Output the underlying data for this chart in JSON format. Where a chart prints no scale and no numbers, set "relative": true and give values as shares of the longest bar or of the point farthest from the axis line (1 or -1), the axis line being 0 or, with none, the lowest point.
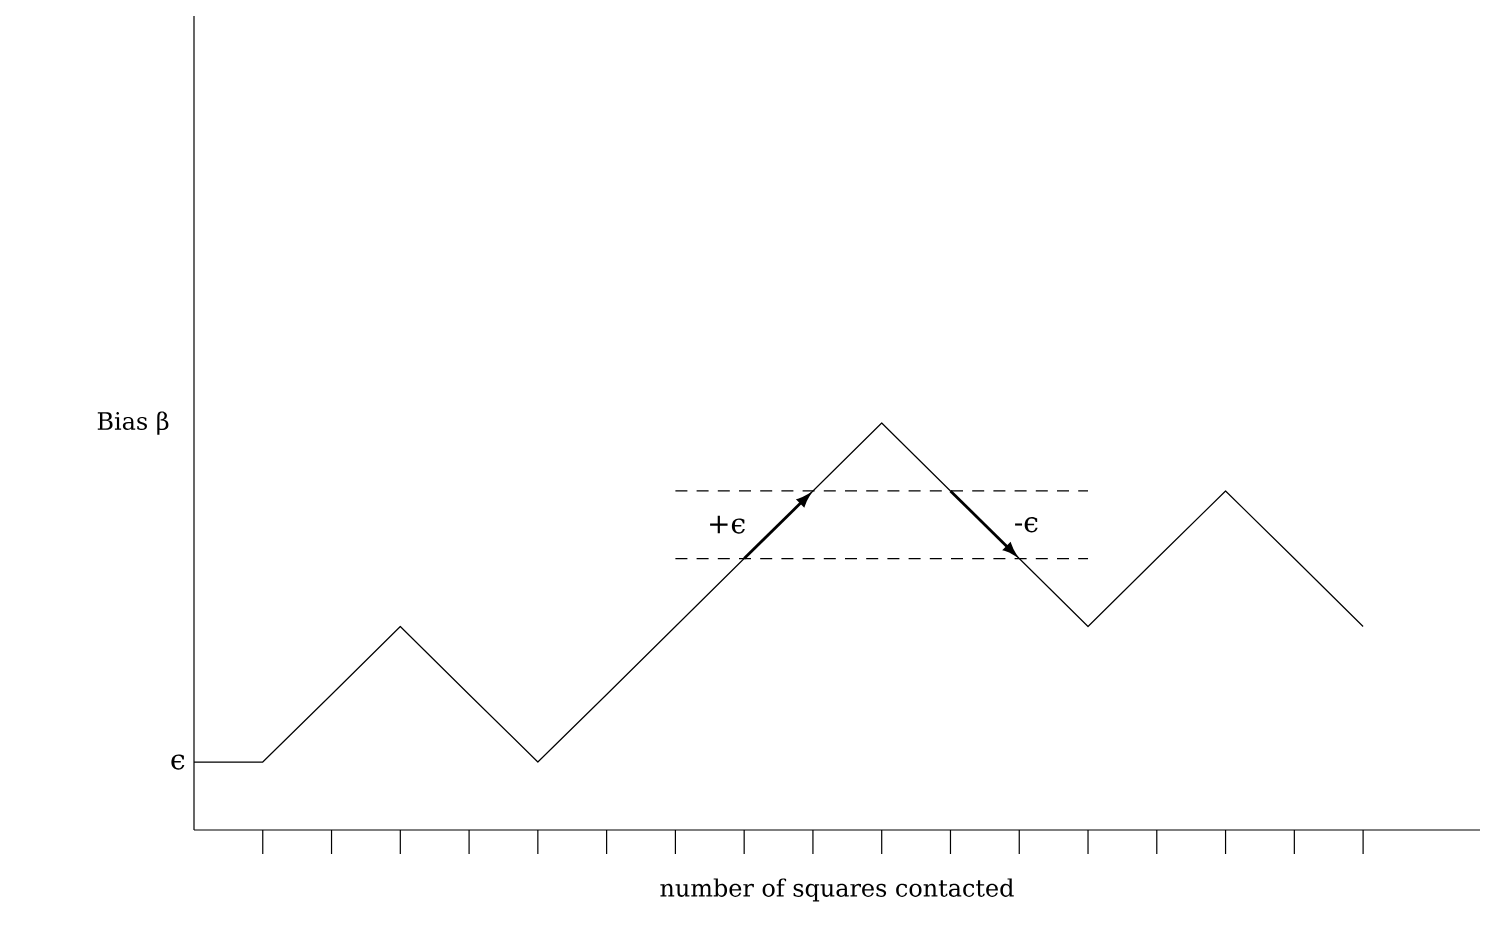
{
  "chart_data": {
    "type": "line",
    "relative": true,
    "xlabel": "number of squares contacted",
    "ylabel": "Bias β",
    "categories": [
      null,
      null,
      null,
      null,
      null,
      null,
      null,
      null,
      null,
      null,
      null,
      null,
      null,
      null,
      null,
      null,
      null,
      null
    ],
    "marker": "none",
    "series": [
      {
        "color": "#000000",
        "line_style": "solid",
        "values": [
          0.167,
          0.167,
          0.333,
          0.5,
          0.333,
          0.167,
          0.333,
          0.5,
          0.667,
          0.833,
          1,
          0.833,
          0.667,
          0.5,
          0.667,
          0.833,
          0.667,
          0.5
        ]
      },
      {
        "color": "#000000",
        "line_style": "dashed",
        "values": [
          null,
          null,
          null,
          null,
          null,
          null,
          null,
          0.833,
          0.833,
          0.833,
          0.833,
          0.833,
          0.833,
          0.833,
          null,
          null,
          null,
          null
        ]
      },
      {
        "color": "#000000",
        "line_style": "dashed",
        "values": [
          null,
          null,
          null,
          null,
          null,
          null,
          null,
          0.667,
          0.667,
          0.667,
          0.667,
          0.667,
          0.667,
          0.667,
          null,
          null,
          null,
          null
        ]
      }
    ],
    "annotations": [
      {
        "text": "+ϵ",
        "y": 0.833
      },
      {
        "text": "-ϵ",
        "y": 0.667
      },
      "ϵ"
    ]
  }
}
